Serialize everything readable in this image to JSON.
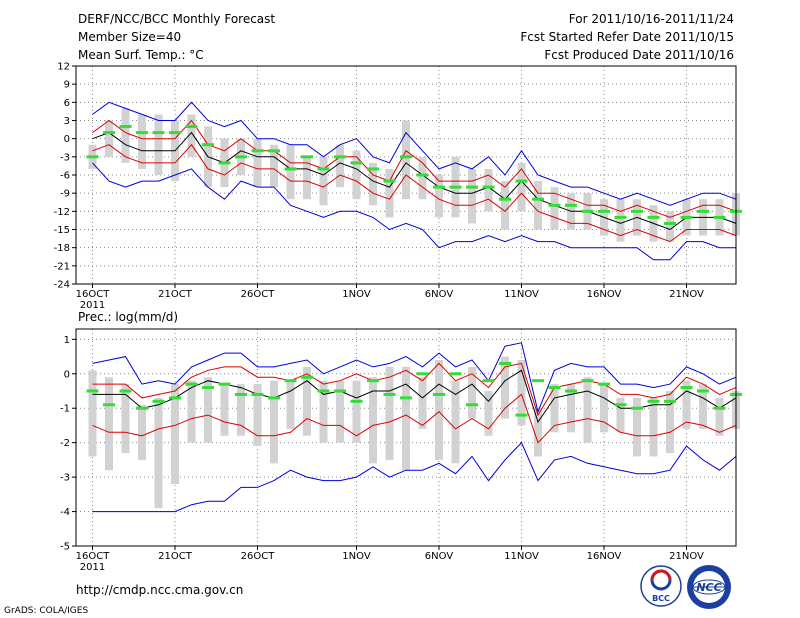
{
  "header": {
    "title": "DERF/NCC/BCC Monthly Forecast",
    "member_size": "Member Size=40",
    "variable": "Mean Surf. Temp.: °C",
    "period": "For 2011/10/16-2011/11/24",
    "start_date": "Fcst Started Refer Date 2011/10/15",
    "produced_date": "Fcst Produced Date 2011/10/16"
  },
  "footer": {
    "url": "http://cmdp.ncc.cma.gov.cn",
    "credit": "GrADS: COLA/IGES",
    "logo_bcc": "BCC",
    "logo_ncc": "NCC"
  },
  "colors": {
    "envelope": "#0000dd",
    "inner_band": "#dd0000",
    "mean": "#000000",
    "median": "#33dd33",
    "box": "#d2d2d2",
    "grid": "#888888"
  },
  "chart_data": [
    {
      "type": "box-ensemble",
      "title": "Mean Surf. Temp.: °C",
      "ylabel": "Mean Surf. Temp. (°C)",
      "ylim": [
        -24,
        12
      ],
      "yticks": [
        12,
        9,
        6,
        3,
        0,
        -3,
        -6,
        -9,
        -12,
        -15,
        -18,
        -21,
        -24
      ],
      "xlim": [
        15,
        55
      ],
      "xtick_labels": [
        {
          "day": 16,
          "label": "16OCT",
          "sub": "2011"
        },
        {
          "day": 21,
          "label": "21OCT",
          "sub": ""
        },
        {
          "day": 26,
          "label": "26OCT",
          "sub": ""
        },
        {
          "day": 32,
          "label": "1NOV",
          "sub": ""
        },
        {
          "day": 37,
          "label": "6NOV",
          "sub": ""
        },
        {
          "day": 42,
          "label": "11NOV",
          "sub": ""
        },
        {
          "day": 47,
          "label": "16NOV",
          "sub": ""
        },
        {
          "day": 52,
          "label": "21NOV",
          "sub": ""
        }
      ],
      "x": [
        16,
        17,
        18,
        19,
        20,
        21,
        22,
        23,
        24,
        25,
        26,
        27,
        28,
        29,
        30,
        31,
        32,
        33,
        34,
        35,
        36,
        37,
        38,
        39,
        40,
        41,
        42,
        43,
        44,
        45,
        46,
        47,
        48,
        49,
        50,
        51,
        52,
        53,
        54,
        55
      ],
      "series": [
        {
          "name": "max",
          "values": [
            4,
            6,
            5,
            4,
            3,
            3,
            6,
            3,
            2,
            3,
            0,
            0,
            -1,
            -1,
            -3,
            -1,
            0,
            -3,
            -4,
            1,
            -2,
            -5,
            -4,
            -5,
            -3,
            -6,
            -2,
            -6,
            -7,
            -8,
            -8,
            -9,
            -10,
            -9,
            -10,
            -11,
            -10,
            -9,
            -9,
            -10
          ]
        },
        {
          "name": "upper",
          "values": [
            1,
            3,
            1,
            0,
            0,
            0,
            3,
            -1,
            -2,
            0,
            -2,
            -2,
            -4,
            -4,
            -5,
            -3,
            -3,
            -6,
            -7,
            -2,
            -4,
            -7,
            -7,
            -7,
            -6,
            -8,
            -5,
            -9,
            -9,
            -10,
            -11,
            -11,
            -12,
            -11,
            -12,
            -13,
            -12,
            -11,
            -11,
            -12
          ]
        },
        {
          "name": "mean",
          "values": [
            0,
            1,
            -1,
            -2,
            -2,
            -2,
            1,
            -3,
            -4,
            -2,
            -3,
            -3,
            -5,
            -5,
            -6,
            -4,
            -5,
            -7,
            -8,
            -4,
            -6,
            -8,
            -9,
            -9,
            -8,
            -10,
            -7,
            -10,
            -11,
            -12,
            -12,
            -13,
            -14,
            -13,
            -14,
            -15,
            -13,
            -13,
            -13,
            -14
          ]
        },
        {
          "name": "lower",
          "values": [
            -2,
            -1,
            -3,
            -4,
            -4,
            -4,
            -1,
            -5,
            -6,
            -4,
            -5,
            -5,
            -7,
            -7,
            -8,
            -6,
            -7,
            -9,
            -10,
            -6,
            -8,
            -10,
            -11,
            -11,
            -10,
            -12,
            -9,
            -12,
            -13,
            -14,
            -14,
            -15,
            -16,
            -15,
            -16,
            -17,
            -15,
            -15,
            -15,
            -16
          ]
        },
        {
          "name": "min",
          "values": [
            -4,
            -7,
            -8,
            -7,
            -7,
            -6,
            -5,
            -8,
            -10,
            -7,
            -8,
            -8,
            -11,
            -12,
            -13,
            -12,
            -12,
            -13,
            -15,
            -14,
            -15,
            -18,
            -17,
            -17,
            -16,
            -17,
            -16,
            -17,
            -17,
            -18,
            -18,
            -18,
            -18,
            -18,
            -20,
            -20,
            -17,
            -17,
            -18,
            -18
          ]
        },
        {
          "name": "median",
          "values": [
            -3,
            1,
            2,
            1,
            1,
            1,
            2,
            -1,
            -4,
            -3,
            -2,
            -2,
            -5,
            -3,
            -5,
            -3,
            -4,
            -5,
            -7,
            -3,
            -6,
            -8,
            -8,
            -8,
            -8,
            -10,
            -7,
            -10,
            -11,
            -11,
            -12,
            -12,
            -13,
            -12,
            -13,
            -14,
            -13,
            -12,
            -13,
            -12
          ]
        },
        {
          "name": "box_hi",
          "values": [
            -1,
            3,
            5,
            4,
            4,
            3,
            4,
            2,
            0,
            0,
            0,
            -1,
            -1,
            -3,
            -3,
            -1,
            -2,
            -4,
            -5,
            3,
            -3,
            -6,
            -3,
            -5,
            -5,
            -7,
            -4,
            -7,
            -8,
            -9,
            -9,
            -10,
            -10,
            -10,
            -11,
            -12,
            -10,
            -10,
            -10,
            -9
          ]
        },
        {
          "name": "box_lo",
          "values": [
            -5,
            -3,
            -4,
            -5,
            -6,
            -7,
            -3,
            -8,
            -8,
            -6,
            -8,
            -8,
            -10,
            -10,
            -11,
            -8,
            -10,
            -11,
            -13,
            -10,
            -10,
            -13,
            -13,
            -14,
            -12,
            -15,
            -12,
            -15,
            -15,
            -15,
            -15,
            -16,
            -17,
            -16,
            -17,
            -17,
            -16,
            -16,
            -16,
            -16
          ]
        }
      ]
    },
    {
      "type": "box-ensemble",
      "title": "Prec.: log(mm/d)",
      "ylabel": "log(mm/d)",
      "ylim": [
        -5,
        1.3
      ],
      "yticks": [
        1,
        0,
        -1,
        -2,
        -3,
        -4,
        -5
      ],
      "xlim": [
        15,
        55
      ],
      "xtick_labels": [
        {
          "day": 16,
          "label": "16OCT",
          "sub": "2011"
        },
        {
          "day": 21,
          "label": "21OCT",
          "sub": ""
        },
        {
          "day": 26,
          "label": "26OCT",
          "sub": ""
        },
        {
          "day": 32,
          "label": "1NOV",
          "sub": ""
        },
        {
          "day": 37,
          "label": "6NOV",
          "sub": ""
        },
        {
          "day": 42,
          "label": "11NOV",
          "sub": ""
        },
        {
          "day": 47,
          "label": "16NOV",
          "sub": ""
        },
        {
          "day": 52,
          "label": "21NOV",
          "sub": ""
        }
      ],
      "x": [
        16,
        17,
        18,
        19,
        20,
        21,
        22,
        23,
        24,
        25,
        26,
        27,
        28,
        29,
        30,
        31,
        32,
        33,
        34,
        35,
        36,
        37,
        38,
        39,
        40,
        41,
        42,
        43,
        44,
        45,
        46,
        47,
        48,
        49,
        50,
        51,
        52,
        53,
        54,
        55
      ],
      "series": [
        {
          "name": "max",
          "values": [
            0.3,
            0.4,
            0.5,
            -0.3,
            -0.2,
            -0.3,
            0.2,
            0.4,
            0.6,
            0.6,
            0.2,
            0.2,
            0.3,
            0.4,
            0.0,
            0.2,
            0.4,
            0.2,
            0.3,
            0.5,
            0.2,
            0.6,
            0.2,
            0.4,
            -0.2,
            0.8,
            0.9,
            -1.1,
            0.1,
            0.3,
            0.2,
            0.2,
            -0.3,
            -0.3,
            -0.4,
            -0.3,
            0.2,
            0.0,
            -0.3,
            -0.1
          ]
        },
        {
          "name": "upper",
          "values": [
            -0.3,
            -0.3,
            -0.3,
            -0.7,
            -0.6,
            -0.5,
            -0.1,
            0.1,
            0.2,
            0.2,
            -0.1,
            -0.1,
            -0.2,
            0.0,
            -0.3,
            -0.2,
            0.0,
            -0.2,
            -0.1,
            0.1,
            -0.2,
            0.3,
            -0.2,
            0.0,
            -0.4,
            0.2,
            0.3,
            -1.2,
            -0.4,
            -0.3,
            -0.2,
            -0.3,
            -0.6,
            -0.6,
            -0.7,
            -0.6,
            -0.1,
            -0.3,
            -0.6,
            -0.4
          ]
        },
        {
          "name": "mean",
          "values": [
            -0.6,
            -0.6,
            -0.6,
            -1.0,
            -0.9,
            -0.7,
            -0.4,
            -0.2,
            -0.3,
            -0.4,
            -0.6,
            -0.7,
            -0.5,
            -0.2,
            -0.6,
            -0.5,
            -0.7,
            -0.5,
            -0.5,
            -0.3,
            -0.7,
            -0.3,
            -0.6,
            -0.3,
            -0.8,
            -0.2,
            0.1,
            -1.4,
            -0.7,
            -0.6,
            -0.5,
            -0.7,
            -1.0,
            -1.0,
            -0.9,
            -0.9,
            -0.5,
            -0.7,
            -1.0,
            -0.7
          ]
        },
        {
          "name": "lower",
          "values": [
            -1.5,
            -1.7,
            -1.7,
            -1.8,
            -1.6,
            -1.5,
            -1.3,
            -1.2,
            -1.4,
            -1.5,
            -1.8,
            -1.8,
            -1.7,
            -1.3,
            -1.5,
            -1.5,
            -1.8,
            -1.5,
            -1.4,
            -1.2,
            -1.5,
            -1.1,
            -1.6,
            -1.3,
            -1.6,
            -1.0,
            -0.6,
            -2.0,
            -1.5,
            -1.4,
            -1.3,
            -1.4,
            -1.7,
            -1.8,
            -1.8,
            -1.7,
            -1.4,
            -1.5,
            -1.7,
            -1.5
          ]
        },
        {
          "name": "min",
          "values": [
            -4.0,
            -4.0,
            -4.0,
            -4.0,
            -4.0,
            -4.0,
            -3.8,
            -3.7,
            -3.7,
            -3.3,
            -3.3,
            -3.1,
            -2.8,
            -3.0,
            -3.1,
            -3.1,
            -3.0,
            -2.7,
            -3.0,
            -2.8,
            -2.8,
            -2.6,
            -2.9,
            -2.4,
            -3.1,
            -2.5,
            -2.0,
            -3.1,
            -2.5,
            -2.4,
            -2.6,
            -2.7,
            -2.8,
            -2.9,
            -2.9,
            -2.8,
            -2.1,
            -2.5,
            -2.8,
            -2.4
          ]
        },
        {
          "name": "median",
          "values": [
            -0.5,
            -0.9,
            -0.5,
            -1.0,
            -0.8,
            -0.7,
            -0.3,
            -0.4,
            -0.3,
            -0.6,
            -0.6,
            -0.7,
            -0.2,
            -0.1,
            -0.5,
            -0.5,
            -0.8,
            -0.2,
            -0.6,
            -0.7,
            0.0,
            -0.6,
            0.0,
            -0.9,
            -0.2,
            0.3,
            -1.2,
            -0.2,
            -0.4,
            -0.5,
            -0.2,
            -0.3,
            -0.9,
            -1.0,
            -0.8,
            -0.8,
            -0.4,
            -0.5,
            -1.0,
            -0.6
          ]
        },
        {
          "name": "box_hi",
          "values": [
            0.1,
            -0.1,
            -0.3,
            -0.9,
            -0.7,
            -0.3,
            -0.2,
            -0.1,
            -0.3,
            -0.3,
            -0.3,
            -0.2,
            -0.2,
            0.2,
            -0.2,
            -0.2,
            -0.2,
            -0.1,
            0.2,
            0.2,
            -0.1,
            0.4,
            -0.2,
            0.2,
            -0.5,
            0.5,
            0.4,
            -1.0,
            -0.3,
            -0.3,
            -0.1,
            -0.3,
            -0.7,
            -0.7,
            -0.7,
            -0.5,
            -0.2,
            -0.3,
            -0.7,
            -0.5
          ]
        },
        {
          "name": "box_lo",
          "values": [
            -2.4,
            -2.8,
            -2.3,
            -2.5,
            -3.9,
            -3.2,
            -2.0,
            -2.0,
            -1.8,
            -1.8,
            -2.1,
            -2.6,
            -1.6,
            -1.8,
            -2.0,
            -2.0,
            -2.0,
            -2.6,
            -2.5,
            -2.8,
            -1.6,
            -2.5,
            -2.6,
            -1.3,
            -1.8,
            -1.3,
            -1.5,
            -2.4,
            -1.7,
            -1.7,
            -2.0,
            -1.7,
            -1.7,
            -2.4,
            -2.4,
            -2.3,
            -1.6,
            -1.6,
            -1.8,
            -1.6
          ]
        }
      ]
    }
  ]
}
